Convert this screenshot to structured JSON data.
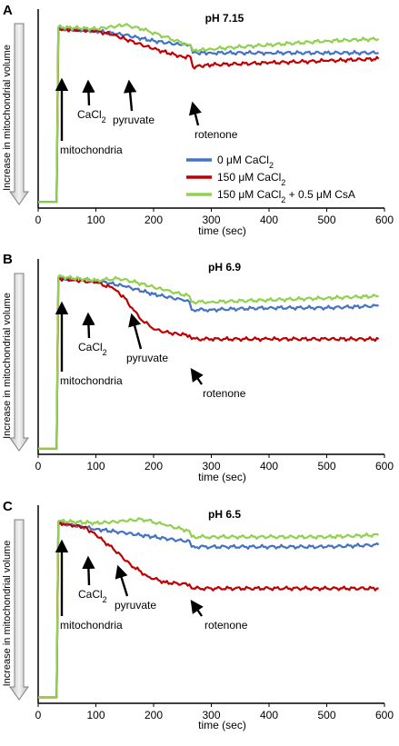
{
  "chart_data": [
    {
      "type": "line",
      "panel": "A",
      "title": "pH 7.15",
      "ylabel": "Increase in mitochondrial volume",
      "xlabel": "time (sec)",
      "xlim": [
        0,
        600
      ],
      "x_ticks": [
        "0",
        "100",
        "200",
        "300",
        "400",
        "500",
        "600"
      ],
      "legend": {
        "position": "inside-bottom-right",
        "entries": [
          "0 μM CaCl",
          "150 μM CaCl",
          "150 μM CaCl + 0.5 μM CsA"
        ],
        "subscript": "2"
      },
      "annotations": [
        {
          "label": "mitochondria",
          "x": 40
        },
        {
          "label": "CaCl",
          "sub": "2",
          "x": 90
        },
        {
          "label": "pyruvate",
          "x": 155
        },
        {
          "label": "rotenone",
          "x": 265
        }
      ],
      "series": [
        {
          "name": "0 μM CaCl2",
          "color": "#4472c4",
          "x": [
            0,
            32,
            35,
            100,
            150,
            200,
            250,
            264,
            268,
            300,
            400,
            500,
            590
          ],
          "y": [
            0.03,
            0.03,
            0.9,
            0.89,
            0.87,
            0.84,
            0.82,
            0.82,
            0.78,
            0.78,
            0.78,
            0.78,
            0.78
          ]
        },
        {
          "name": "150 μM CaCl2",
          "color": "#c00000",
          "x": [
            0,
            32,
            35,
            100,
            130,
            150,
            200,
            250,
            264,
            268,
            300,
            400,
            500,
            590
          ],
          "y": [
            0.03,
            0.03,
            0.9,
            0.89,
            0.87,
            0.85,
            0.8,
            0.76,
            0.76,
            0.71,
            0.72,
            0.73,
            0.74,
            0.75
          ]
        },
        {
          "name": "150 μM CaCl2 + 0.5 μM CsA",
          "color": "#92d050",
          "x": [
            0,
            32,
            35,
            100,
            150,
            180,
            220,
            260,
            264,
            268,
            300,
            400,
            500,
            590
          ],
          "y": [
            0.03,
            0.03,
            0.91,
            0.9,
            0.92,
            0.9,
            0.86,
            0.82,
            0.82,
            0.79,
            0.8,
            0.82,
            0.84,
            0.85
          ]
        }
      ]
    },
    {
      "type": "line",
      "panel": "B",
      "title": "pH 6.9",
      "ylabel": "Increase in mitochondrial volume",
      "xlabel": "time (sec)",
      "xlim": [
        0,
        600
      ],
      "x_ticks": [
        "0",
        "100",
        "200",
        "300",
        "400",
        "500",
        "600"
      ],
      "annotations": [
        {
          "label": "mitochondria",
          "x": 40
        },
        {
          "label": "CaCl",
          "sub": "2",
          "x": 90
        },
        {
          "label": "pyruvate",
          "x": 150
        },
        {
          "label": "rotenone",
          "x": 262
        }
      ],
      "series": [
        {
          "name": "0 μM CaCl2",
          "color": "#4472c4",
          "x": [
            0,
            32,
            35,
            100,
            150,
            200,
            250,
            262,
            266,
            300,
            400,
            500,
            590
          ],
          "y": [
            0.03,
            0.03,
            0.9,
            0.89,
            0.86,
            0.82,
            0.79,
            0.78,
            0.74,
            0.74,
            0.75,
            0.75,
            0.76
          ]
        },
        {
          "name": "150 μM CaCl2",
          "color": "#c00000",
          "x": [
            0,
            32,
            35,
            100,
            130,
            150,
            175,
            200,
            230,
            262,
            266,
            300,
            400,
            500,
            590
          ],
          "y": [
            0.03,
            0.03,
            0.9,
            0.88,
            0.85,
            0.8,
            0.7,
            0.64,
            0.62,
            0.61,
            0.59,
            0.59,
            0.59,
            0.59,
            0.59
          ]
        },
        {
          "name": "150 μM CaCl2 + 0.5 μM CsA",
          "color": "#92d050",
          "x": [
            0,
            32,
            35,
            100,
            140,
            170,
            220,
            262,
            266,
            300,
            400,
            500,
            590
          ],
          "y": [
            0.03,
            0.03,
            0.91,
            0.89,
            0.9,
            0.88,
            0.84,
            0.81,
            0.78,
            0.78,
            0.79,
            0.8,
            0.81
          ]
        }
      ]
    },
    {
      "type": "line",
      "panel": "C",
      "title": "pH 6.5",
      "ylabel": "Increase in mitochondrial volume",
      "xlabel": "time (sec)",
      "xlim": [
        0,
        600
      ],
      "x_ticks": [
        "0",
        "100",
        "200",
        "300",
        "400",
        "500",
        "600"
      ],
      "annotations": [
        {
          "label": "mitochondria",
          "x": 40
        },
        {
          "label": "CaCl",
          "sub": "2",
          "x": 88
        },
        {
          "label": "pyruvate",
          "x": 135
        },
        {
          "label": "rotenone",
          "x": 262
        }
      ],
      "series": [
        {
          "name": "0 μM CaCl2",
          "color": "#4472c4",
          "x": [
            0,
            32,
            35,
            100,
            150,
            200,
            250,
            262,
            266,
            300,
            400,
            500,
            590
          ],
          "y": [
            0.03,
            0.03,
            0.91,
            0.88,
            0.86,
            0.84,
            0.82,
            0.82,
            0.79,
            0.79,
            0.79,
            0.79,
            0.8
          ]
        },
        {
          "name": "150 μM CaCl2",
          "color": "#c00000",
          "x": [
            0,
            32,
            35,
            80,
            100,
            130,
            160,
            190,
            220,
            262,
            266,
            300,
            400,
            500,
            590
          ],
          "y": [
            0.03,
            0.03,
            0.91,
            0.89,
            0.85,
            0.78,
            0.7,
            0.64,
            0.61,
            0.6,
            0.58,
            0.58,
            0.58,
            0.58,
            0.58
          ]
        },
        {
          "name": "150 μM CaCl2 + 0.5 μM CsA",
          "color": "#92d050",
          "x": [
            0,
            32,
            35,
            100,
            150,
            180,
            220,
            262,
            266,
            300,
            400,
            500,
            590
          ],
          "y": [
            0.03,
            0.03,
            0.92,
            0.91,
            0.92,
            0.93,
            0.9,
            0.87,
            0.84,
            0.84,
            0.84,
            0.84,
            0.85
          ]
        }
      ]
    }
  ]
}
